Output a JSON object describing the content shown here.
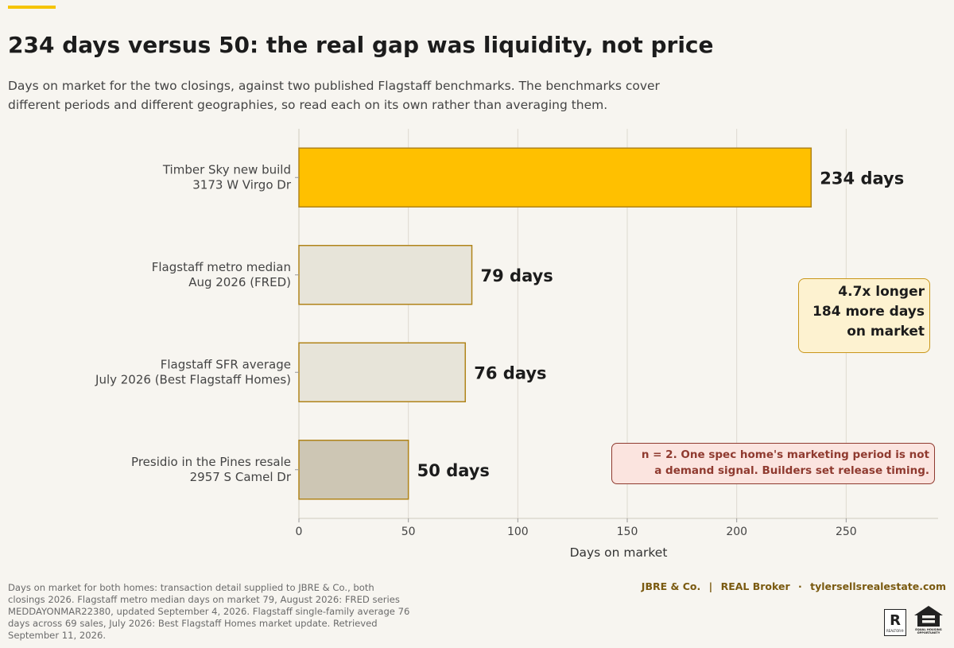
{
  "title": "234 days versus 50: the real gap was liquidity, not price",
  "subtitle": "Days on market for the two closings, against two published Flagstaff benchmarks. The benchmarks cover different periods and different geographies, so read each on its own rather than averaging them.",
  "colors": {
    "accent": "#f5c400",
    "highlight_bar": "#ffc000",
    "benchmark_bar": "#e7e4d9",
    "resale_bar": "#cdc6b4",
    "bar_stroke": "#b0841a",
    "warning_text": "#8f3a2f"
  },
  "chart_data": {
    "type": "bar",
    "orientation": "horizontal",
    "categories": [
      [
        "Timber Sky new build",
        "3173 W Virgo Dr"
      ],
      [
        "Flagstaff metro median",
        "Aug 2026 (FRED)"
      ],
      [
        "Flagstaff SFR average",
        "July 2026 (Best Flagstaff Homes)"
      ],
      [
        "Presidio in the Pines resale",
        "2957 S Camel Dr"
      ]
    ],
    "values": [
      234,
      79,
      76,
      50
    ],
    "value_labels": [
      "234 days",
      "79 days",
      "76 days",
      "50 days"
    ],
    "bar_colors": [
      "#ffc000",
      "#e7e4d9",
      "#e7e4d9",
      "#cdc6b4"
    ],
    "xlabel": "Days on market",
    "xlim": [
      0,
      292
    ],
    "xticks": [
      0,
      50,
      100,
      150,
      200,
      250
    ],
    "grid": "vertical"
  },
  "callout": {
    "lines": [
      "4.7x longer",
      "184 more days",
      "on market"
    ]
  },
  "warning": {
    "lines": [
      "n = 2. One spec home's marketing period is not",
      "a demand signal. Builders set release timing."
    ]
  },
  "source_note": "Days on market for both homes: transaction detail supplied to JBRE & Co., both closings 2026. Flagstaff metro median days on market 79, August 2026: FRED series MEDDAYONMAR22380, updated September 4, 2026. Flagstaff single-family average 76 days across 69 sales, July 2026: Best Flagstaff Homes market update. Retrieved September 11, 2026.",
  "brand": {
    "company": "JBRE & Co.",
    "divider": "|",
    "broker": "REAL Broker",
    "dot": "·",
    "website": "tylersellsrealestate.com"
  },
  "logos": {
    "realtor_letter": "R",
    "realtor_text": "REALTOR®",
    "eho_text": "EQUAL HOUSING OPPORTUNITY"
  }
}
